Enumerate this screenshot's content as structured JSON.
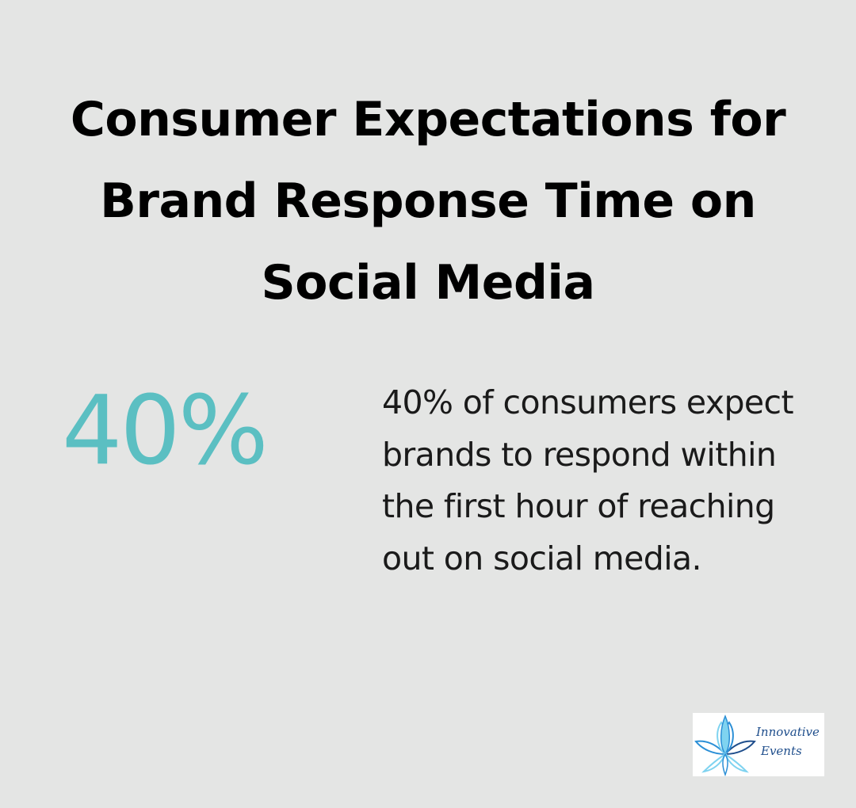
{
  "heading": {
    "title": "Consumer Expectations for Brand Response Time on Social Media"
  },
  "stat": {
    "value": "40%",
    "description": "40% of consumers expect brands to respond within the first hour of reaching out on social media."
  },
  "logo": {
    "line1": "Innovative",
    "line2": "Events",
    "colors": {
      "dark": "#1f4e8c",
      "mid": "#2b8fd6",
      "light": "#7fd3f0"
    }
  },
  "colors": {
    "background": "#e4e5e4",
    "accent": "#5bbfc2",
    "text": "#000000"
  }
}
